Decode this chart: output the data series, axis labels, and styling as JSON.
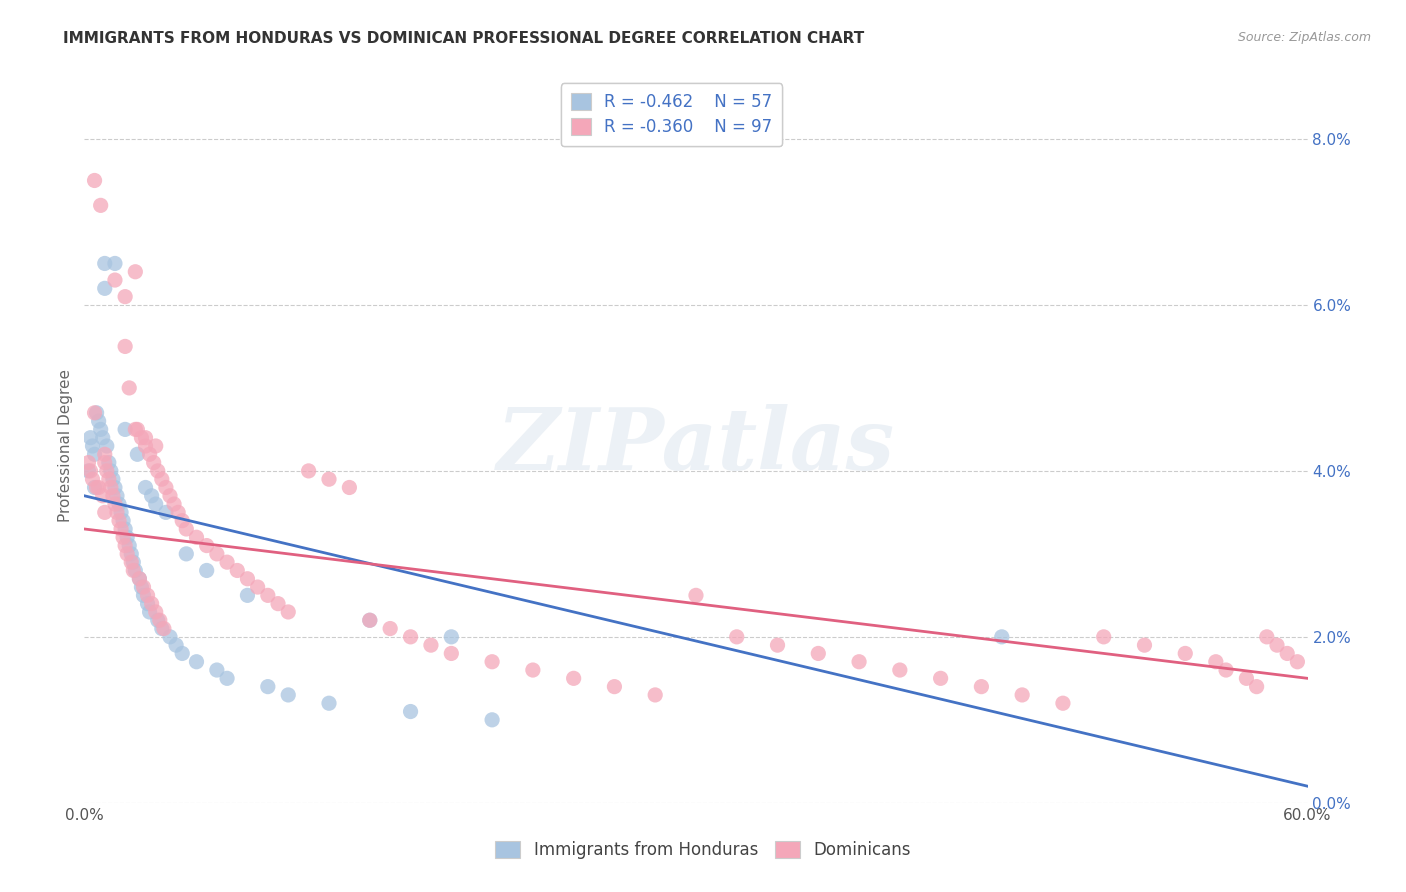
{
  "title": "IMMIGRANTS FROM HONDURAS VS DOMINICAN PROFESSIONAL DEGREE CORRELATION CHART",
  "source": "Source: ZipAtlas.com",
  "ylabel": "Professional Degree",
  "legend_r1": "-0.462",
  "legend_n1": "57",
  "legend_r2": "-0.360",
  "legend_n2": "97",
  "legend_label1": "Immigrants from Honduras",
  "legend_label2": "Dominicans",
  "blue_color": "#a8c4e0",
  "pink_color": "#f4a7b9",
  "blue_line_color": "#4472c4",
  "pink_line_color": "#e06080",
  "text_blue": "#4472c4",
  "xlim": [
    0.0,
    0.6
  ],
  "ylim": [
    0.0,
    0.086
  ],
  "watermark": "ZIPatlas",
  "honduras_x": [
    0.002,
    0.003,
    0.004,
    0.005,
    0.005,
    0.006,
    0.007,
    0.008,
    0.009,
    0.01,
    0.01,
    0.011,
    0.012,
    0.013,
    0.014,
    0.015,
    0.015,
    0.016,
    0.017,
    0.018,
    0.019,
    0.02,
    0.02,
    0.021,
    0.022,
    0.023,
    0.024,
    0.025,
    0.026,
    0.027,
    0.028,
    0.029,
    0.03,
    0.031,
    0.032,
    0.033,
    0.035,
    0.036,
    0.038,
    0.04,
    0.042,
    0.045,
    0.048,
    0.05,
    0.055,
    0.06,
    0.065,
    0.07,
    0.08,
    0.09,
    0.1,
    0.12,
    0.14,
    0.16,
    0.18,
    0.2,
    0.45
  ],
  "honduras_y": [
    0.04,
    0.044,
    0.043,
    0.042,
    0.038,
    0.047,
    0.046,
    0.045,
    0.044,
    0.065,
    0.062,
    0.043,
    0.041,
    0.04,
    0.039,
    0.038,
    0.065,
    0.037,
    0.036,
    0.035,
    0.034,
    0.045,
    0.033,
    0.032,
    0.031,
    0.03,
    0.029,
    0.028,
    0.042,
    0.027,
    0.026,
    0.025,
    0.038,
    0.024,
    0.023,
    0.037,
    0.036,
    0.022,
    0.021,
    0.035,
    0.02,
    0.019,
    0.018,
    0.03,
    0.017,
    0.028,
    0.016,
    0.015,
    0.025,
    0.014,
    0.013,
    0.012,
    0.022,
    0.011,
    0.02,
    0.01,
    0.02
  ],
  "dominican_x": [
    0.002,
    0.003,
    0.004,
    0.005,
    0.005,
    0.006,
    0.007,
    0.008,
    0.009,
    0.01,
    0.01,
    0.011,
    0.012,
    0.013,
    0.014,
    0.015,
    0.016,
    0.017,
    0.018,
    0.019,
    0.02,
    0.02,
    0.021,
    0.022,
    0.023,
    0.024,
    0.025,
    0.026,
    0.027,
    0.028,
    0.029,
    0.03,
    0.031,
    0.032,
    0.033,
    0.034,
    0.035,
    0.036,
    0.037,
    0.038,
    0.039,
    0.04,
    0.042,
    0.044,
    0.046,
    0.048,
    0.05,
    0.055,
    0.06,
    0.065,
    0.07,
    0.075,
    0.08,
    0.085,
    0.09,
    0.095,
    0.1,
    0.11,
    0.12,
    0.13,
    0.14,
    0.15,
    0.16,
    0.17,
    0.18,
    0.2,
    0.22,
    0.24,
    0.26,
    0.28,
    0.3,
    0.32,
    0.34,
    0.36,
    0.38,
    0.4,
    0.42,
    0.44,
    0.46,
    0.48,
    0.5,
    0.52,
    0.54,
    0.555,
    0.56,
    0.57,
    0.575,
    0.58,
    0.585,
    0.59,
    0.595,
    0.01,
    0.015,
    0.02,
    0.025,
    0.03,
    0.035
  ],
  "dominican_y": [
    0.041,
    0.04,
    0.039,
    0.075,
    0.047,
    0.038,
    0.038,
    0.072,
    0.037,
    0.042,
    0.041,
    0.04,
    0.039,
    0.038,
    0.037,
    0.036,
    0.035,
    0.034,
    0.033,
    0.032,
    0.055,
    0.031,
    0.03,
    0.05,
    0.029,
    0.028,
    0.064,
    0.045,
    0.027,
    0.044,
    0.026,
    0.043,
    0.025,
    0.042,
    0.024,
    0.041,
    0.023,
    0.04,
    0.022,
    0.039,
    0.021,
    0.038,
    0.037,
    0.036,
    0.035,
    0.034,
    0.033,
    0.032,
    0.031,
    0.03,
    0.029,
    0.028,
    0.027,
    0.026,
    0.025,
    0.024,
    0.023,
    0.04,
    0.039,
    0.038,
    0.022,
    0.021,
    0.02,
    0.019,
    0.018,
    0.017,
    0.016,
    0.015,
    0.014,
    0.013,
    0.025,
    0.02,
    0.019,
    0.018,
    0.017,
    0.016,
    0.015,
    0.014,
    0.013,
    0.012,
    0.02,
    0.019,
    0.018,
    0.017,
    0.016,
    0.015,
    0.014,
    0.02,
    0.019,
    0.018,
    0.017,
    0.035,
    0.063,
    0.061,
    0.045,
    0.044,
    0.043
  ],
  "honduras_trend_x0": 0.0,
  "honduras_trend_x1": 0.6,
  "honduras_trend_y0": 0.037,
  "honduras_trend_y1": 0.002,
  "dominican_trend_x0": 0.0,
  "dominican_trend_x1": 0.6,
  "dominican_trend_y0": 0.033,
  "dominican_trend_y1": 0.015
}
